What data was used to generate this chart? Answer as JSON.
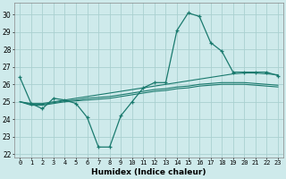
{
  "xlabel": "Humidex (Indice chaleur)",
  "background_color": "#ceeaeb",
  "grid_color": "#aad0d0",
  "line_color": "#1a7a6e",
  "xlim": [
    -0.5,
    23.5
  ],
  "ylim": [
    21.8,
    30.7
  ],
  "yticks": [
    22,
    23,
    24,
    25,
    26,
    27,
    28,
    29,
    30
  ],
  "xticks": [
    0,
    1,
    2,
    3,
    4,
    5,
    6,
    7,
    8,
    9,
    10,
    11,
    12,
    13,
    14,
    15,
    16,
    17,
    18,
    19,
    20,
    21,
    22,
    23
  ],
  "series_main": [
    26.4,
    24.9,
    24.6,
    25.2,
    25.1,
    24.9,
    24.1,
    22.4,
    22.4,
    24.2,
    25.0,
    25.8,
    26.1,
    26.1,
    29.1,
    30.1,
    29.9,
    28.4,
    27.9,
    26.7,
    26.7,
    26.7,
    26.7,
    26.5
  ],
  "series_smooth": [
    [
      25.0,
      24.9,
      24.9,
      25.0,
      25.1,
      25.2,
      25.3,
      25.4,
      25.5,
      25.6,
      25.7,
      25.8,
      25.9,
      26.0,
      26.1,
      26.2,
      26.3,
      26.4,
      26.5,
      26.6,
      26.65,
      26.65,
      26.6,
      26.55
    ],
    [
      25.0,
      24.85,
      24.85,
      24.95,
      25.05,
      25.1,
      25.2,
      25.25,
      25.3,
      25.4,
      25.5,
      25.6,
      25.7,
      25.75,
      25.85,
      25.9,
      26.0,
      26.05,
      26.1,
      26.1,
      26.1,
      26.05,
      26.0,
      25.95
    ],
    [
      25.0,
      24.8,
      24.8,
      24.9,
      25.0,
      25.05,
      25.1,
      25.15,
      25.2,
      25.3,
      25.4,
      25.5,
      25.6,
      25.65,
      25.75,
      25.8,
      25.9,
      25.95,
      26.0,
      26.0,
      26.0,
      25.95,
      25.9,
      25.85
    ]
  ]
}
